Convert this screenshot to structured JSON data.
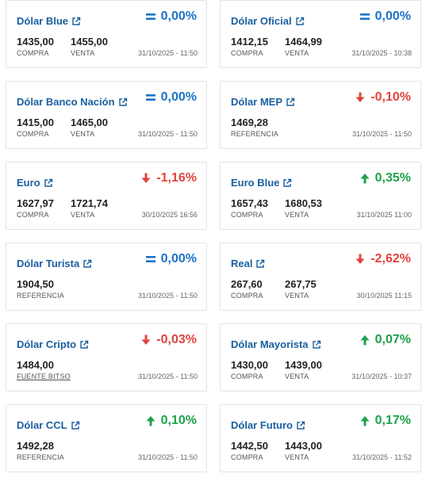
{
  "cards": [
    {
      "title": "Dólar Blue",
      "change": "0,00%",
      "dir": "flat",
      "v1": "1435,00",
      "l1": "COMPRA",
      "v2": "1455,00",
      "l2": "VENTA",
      "date": "31/10/2025 - 11:50"
    },
    {
      "title": "Dólar Oficial",
      "change": "0,00%",
      "dir": "flat",
      "v1": "1412,15",
      "l1": "COMPRA",
      "v2": "1464,99",
      "l2": "VENTA",
      "date": "31/10/2025 - 10:38"
    },
    {
      "title": "Dólar Banco Nación",
      "change": "0,00%",
      "dir": "flat",
      "v1": "1415,00",
      "l1": "COMPRA",
      "v2": "1465,00",
      "l2": "VENTA",
      "date": "31/10/2025 - 11:50"
    },
    {
      "title": "Dólar MEP",
      "change": "-0,10%",
      "dir": "down",
      "v1": "1469,28",
      "l1": "REFERENCIA",
      "v2": "",
      "l2": "",
      "date": "31/10/2025 - 11:50"
    },
    {
      "title": "Euro",
      "change": "-1,16%",
      "dir": "down",
      "v1": "1627,97",
      "l1": "COMPRA",
      "v2": "1721,74",
      "l2": "VENTA",
      "date": "30/10/2025 16:56"
    },
    {
      "title": "Euro Blue",
      "change": "0,35%",
      "dir": "up",
      "v1": "1657,43",
      "l1": "COMPRA",
      "v2": "1680,53",
      "l2": "VENTA",
      "date": "31/10/2025 11:00"
    },
    {
      "title": "Dólar Turista",
      "change": "0,00%",
      "dir": "flat",
      "v1": "1904,50",
      "l1": "REFERENCIA",
      "v2": "",
      "l2": "",
      "date": "31/10/2025 - 11:50"
    },
    {
      "title": "Real",
      "change": "-2,62%",
      "dir": "down",
      "v1": "267,60",
      "l1": "COMPRA",
      "v2": "267,75",
      "l2": "VENTA",
      "date": "30/10/2025 11:15"
    },
    {
      "title": "Dólar Cripto",
      "change": "-0,03%",
      "dir": "down",
      "v1": "1484,00",
      "l1": "FUENTE BITSO",
      "v2": "",
      "l2": "",
      "date": "31/10/2025 - 11:50"
    },
    {
      "title": "Dólar Mayorista",
      "change": "0,07%",
      "dir": "up",
      "v1": "1430,00",
      "l1": "COMPRA",
      "v2": "1439,00",
      "l2": "VENTA",
      "date": "31/10/2025 - 10:37"
    },
    {
      "title": "Dólar CCL",
      "change": "0,10%",
      "dir": "up",
      "v1": "1492,28",
      "l1": "REFERENCIA",
      "v2": "",
      "l2": "",
      "date": "31/10/2025 - 11:50"
    },
    {
      "title": "Dólar Futuro",
      "change": "0,17%",
      "dir": "up",
      "v1": "1442,50",
      "l1": "COMPRA",
      "v2": "1443,00",
      "l2": "VENTA",
      "date": "31/10/2025 - 11:52"
    }
  ],
  "colors": {
    "title": "#1a5fa0",
    "flat": "#1a73c7",
    "down": "#e0433e",
    "up": "#1fa14a"
  },
  "icons": {
    "external": "external-link-icon",
    "flat": "equals-icon",
    "down": "arrow-down-icon",
    "up": "arrow-up-icon"
  }
}
